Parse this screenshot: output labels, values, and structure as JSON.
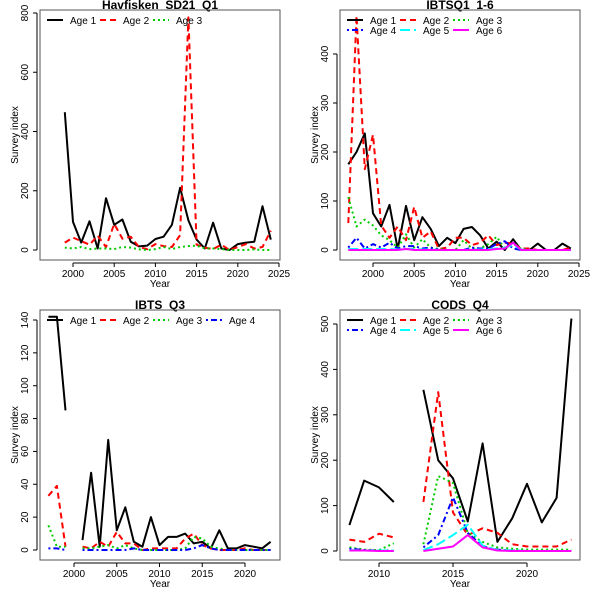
{
  "chart_data": [
    {
      "type": "line",
      "title": "Havfisken_SD21_Q1",
      "xlabel": "Year",
      "ylabel": "Survey index",
      "xlim": [
        1996.0,
        2025.0
      ],
      "ylim": [
        0,
        800
      ],
      "xticks": [
        2000,
        2005,
        2010,
        2015,
        2020,
        2025
      ],
      "yticks": [
        0,
        200,
        400,
        600,
        800
      ],
      "legend_position": "top",
      "legend_cols": 3,
      "x": [
        1999,
        2000,
        2001,
        2002,
        2003,
        2004,
        2005,
        2006,
        2007,
        2008,
        2009,
        2010,
        2011,
        2012,
        2013,
        2014,
        2015,
        2016,
        2017,
        2018,
        2019,
        2020,
        2021,
        2022,
        2023,
        2024
      ],
      "series": [
        {
          "name": "Age 1",
          "color": "#000000",
          "dash": "solid",
          "values": [
            465,
            95,
            25,
            97,
            5,
            175,
            85,
            103,
            28,
            12,
            15,
            37,
            45,
            85,
            210,
            100,
            35,
            5,
            92,
            5,
            0,
            20,
            25,
            28,
            148,
            35
          ]
        },
        {
          "name": "Age 2",
          "color": "#ff0000",
          "dash": "dashed",
          "values": [
            25,
            42,
            30,
            18,
            48,
            10,
            88,
            38,
            45,
            10,
            3,
            20,
            13,
            10,
            50,
            785,
            18,
            8,
            3,
            18,
            0,
            10,
            20,
            5,
            10,
            65
          ]
        },
        {
          "name": "Age 3",
          "color": "#00cd00",
          "dash": "dotted",
          "values": [
            8,
            5,
            10,
            3,
            5,
            5,
            3,
            10,
            8,
            2,
            0,
            3,
            10,
            3,
            10,
            13,
            15,
            5,
            5,
            3,
            0,
            0,
            0,
            2,
            0,
            0
          ]
        }
      ]
    },
    {
      "type": "line",
      "title": "IBTSQ1_1-6",
      "xlabel": "Year",
      "ylabel": "Survey index",
      "xlim": [
        1996.0,
        2025.0
      ],
      "ylim": [
        0,
        480
      ],
      "xticks": [
        2000,
        2005,
        2010,
        2015,
        2020,
        2025
      ],
      "yticks": [
        0,
        100,
        200,
        300,
        400
      ],
      "legend_position": "top",
      "legend_cols": 3,
      "x": [
        1997,
        1998,
        1999,
        2000,
        2001,
        2002,
        2003,
        2004,
        2005,
        2006,
        2007,
        2008,
        2009,
        2010,
        2011,
        2012,
        2013,
        2014,
        2015,
        2016,
        2017,
        2018,
        2019,
        2020,
        2021,
        2022,
        2023,
        2024
      ],
      "series": [
        {
          "name": "Age 1",
          "color": "#000000",
          "dash": "solid",
          "values": [
            175,
            200,
            238,
            75,
            48,
            92,
            2,
            90,
            20,
            67,
            43,
            8,
            25,
            14,
            43,
            47,
            30,
            3,
            17,
            0,
            22,
            0,
            0,
            13,
            0,
            0,
            13,
            3
          ]
        },
        {
          "name": "Age 2",
          "color": "#ff0000",
          "dash": "dashed",
          "values": [
            55,
            478,
            165,
            235,
            50,
            25,
            48,
            20,
            88,
            25,
            38,
            2,
            5,
            25,
            25,
            10,
            15,
            30,
            10,
            15,
            13,
            3,
            3,
            0,
            0,
            0,
            0,
            5
          ]
        },
        {
          "name": "Age 3",
          "color": "#00cd00",
          "dash": "dotted",
          "values": [
            108,
            48,
            62,
            50,
            30,
            20,
            5,
            32,
            5,
            22,
            5,
            2,
            0,
            0,
            20,
            3,
            3,
            12,
            27,
            3,
            15,
            2,
            0,
            0,
            0,
            0,
            0,
            0
          ]
        },
        {
          "name": "Age 4",
          "color": "#0000ff",
          "dash": "dotdash",
          "values": [
            5,
            25,
            3,
            12,
            5,
            15,
            3,
            8,
            8,
            3,
            5,
            0,
            0,
            0,
            0,
            5,
            3,
            3,
            12,
            18,
            3,
            0,
            0,
            0,
            0,
            0,
            0,
            0
          ]
        },
        {
          "name": "Age 5",
          "color": "#00ffff",
          "dash": "longdash",
          "values": [
            2,
            2,
            2,
            2,
            2,
            2,
            1,
            2,
            2,
            1,
            1,
            0,
            0,
            0,
            0,
            1,
            1,
            2,
            3,
            5,
            10,
            1,
            0,
            0,
            0,
            0,
            0,
            0
          ]
        },
        {
          "name": "Age 6",
          "color": "#ff00ff",
          "dash": "solid",
          "values": [
            0,
            0,
            0,
            0,
            0,
            0,
            0,
            2,
            0,
            0,
            0,
            0,
            0,
            0,
            0,
            0,
            0,
            0,
            2,
            3,
            15,
            0,
            0,
            0,
            0,
            0,
            0,
            0
          ]
        }
      ]
    },
    {
      "type": "line",
      "title": "IBTS_Q3",
      "xlabel": "Year",
      "ylabel": "Survey index",
      "xlim": [
        1996.0,
        2024.0
      ],
      "ylim": [
        -5,
        145
      ],
      "xticks": [
        2000,
        2005,
        2010,
        2015,
        2020
      ],
      "yticks": [
        0,
        20,
        40,
        60,
        80,
        100,
        120,
        140
      ],
      "legend_position": "top",
      "legend_cols": 4,
      "x": [
        1997,
        1998,
        1999,
        2000,
        2001,
        2002,
        2003,
        2004,
        2005,
        2006,
        2007,
        2008,
        2009,
        2010,
        2011,
        2012,
        2013,
        2014,
        2015,
        2016,
        2017,
        2018,
        2019,
        2020,
        2021,
        2022,
        2023
      ],
      "series": [
        {
          "name": "Age 1",
          "color": "#000000",
          "dash": "solid",
          "values": [
            142,
            142,
            85,
            null,
            6,
            47,
            2,
            67,
            12,
            26,
            5,
            2,
            20,
            3,
            8,
            8,
            10,
            4,
            5,
            1,
            12,
            1,
            1,
            3,
            2,
            1,
            5
          ]
        },
        {
          "name": "Age 2",
          "color": "#ff0000",
          "dash": "dashed",
          "values": [
            33,
            39,
            2,
            null,
            2,
            1,
            5,
            2,
            11,
            4,
            4,
            0,
            1,
            1,
            1,
            1,
            7,
            10,
            3,
            1,
            0,
            0,
            0,
            1,
            0,
            0,
            0
          ]
        },
        {
          "name": "Age 3",
          "color": "#00cd00",
          "dash": "dotted",
          "values": [
            15,
            2,
            2,
            null,
            1,
            1,
            2,
            3,
            1,
            3,
            1,
            0,
            0,
            0,
            0,
            0,
            1,
            8,
            7,
            2,
            1,
            0,
            0,
            0,
            0,
            0,
            0
          ]
        },
        {
          "name": "Age 4",
          "color": "#0000ff",
          "dash": "dotdash",
          "values": [
            1,
            1,
            0,
            null,
            0,
            0,
            0,
            0,
            0,
            0,
            1,
            0,
            0,
            0,
            0,
            0,
            0,
            1,
            3,
            1,
            0,
            0,
            0,
            0,
            0,
            0,
            0
          ]
        }
      ]
    },
    {
      "type": "line",
      "title": "CODS_Q4",
      "xlabel": "Year",
      "ylabel": "Survey index",
      "xlim": [
        2007.4,
        2023.6
      ],
      "ylim": [
        0,
        520
      ],
      "xticks": [
        2010,
        2015,
        2020
      ],
      "yticks": [
        0,
        100,
        200,
        300,
        400,
        500
      ],
      "legend_position": "top",
      "legend_cols": 3,
      "x": [
        2008,
        2009,
        2010,
        2011,
        2012,
        2013,
        2014,
        2015,
        2016,
        2017,
        2018,
        2019,
        2020,
        2021,
        2022,
        2023
      ],
      "series": [
        {
          "name": "Age 1",
          "color": "#000000",
          "dash": "solid",
          "values": [
            57,
            155,
            140,
            108,
            null,
            355,
            200,
            160,
            65,
            237,
            20,
            72,
            148,
            63,
            117,
            512
          ]
        },
        {
          "name": "Age 2",
          "color": "#ff0000",
          "dash": "dashed",
          "values": [
            25,
            20,
            38,
            30,
            null,
            108,
            350,
            85,
            35,
            50,
            40,
            15,
            10,
            10,
            10,
            25
          ]
        },
        {
          "name": "Age 3",
          "color": "#00cd00",
          "dash": "dotted",
          "values": [
            8,
            3,
            2,
            17,
            null,
            15,
            165,
            150,
            40,
            20,
            8,
            5,
            3,
            3,
            3,
            3
          ]
        },
        {
          "name": "Age 4",
          "color": "#0000ff",
          "dash": "dotdash",
          "values": [
            5,
            2,
            1,
            1,
            null,
            8,
            35,
            118,
            40,
            10,
            3,
            1,
            0,
            0,
            0,
            0
          ]
        },
        {
          "name": "Age 5",
          "color": "#00ffff",
          "dash": "longdash",
          "values": [
            2,
            1,
            1,
            1,
            null,
            2,
            15,
            35,
            58,
            12,
            2,
            1,
            0,
            0,
            0,
            0
          ]
        },
        {
          "name": "Age 6",
          "color": "#ff00ff",
          "dash": "solid",
          "values": [
            1,
            1,
            0,
            0,
            null,
            0,
            5,
            10,
            35,
            8,
            1,
            0,
            0,
            0,
            0,
            0
          ]
        }
      ]
    }
  ]
}
